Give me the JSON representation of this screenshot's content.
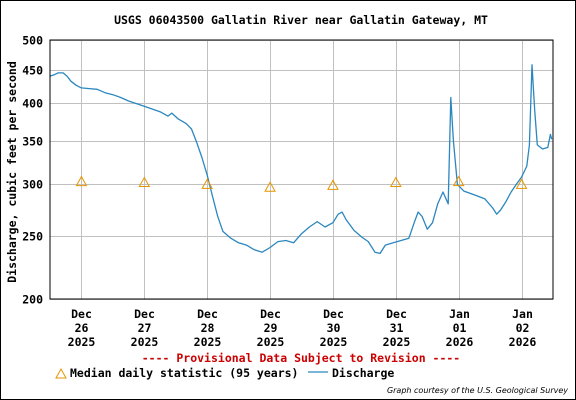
{
  "chart_data": {
    "type": "line",
    "title": "USGS 06043500 Gallatin River near Gallatin Gateway, MT",
    "ylabel": "Discharge, cubic feet per second",
    "y_scale": "log",
    "ylim": [
      200,
      500
    ],
    "yticks": [
      "500",
      "450",
      "400",
      "350",
      "300",
      "250",
      "200"
    ],
    "ytick_values": [
      500,
      450,
      400,
      350,
      300,
      250,
      200
    ],
    "xlim": [
      "2025-12-25T12:00",
      "2026-01-02T12:00"
    ],
    "xticks": [
      {
        "date": "2025-12-26",
        "l1": "Dec",
        "l2": "26",
        "l3": "2025"
      },
      {
        "date": "2025-12-27",
        "l1": "Dec",
        "l2": "27",
        "l3": "2025"
      },
      {
        "date": "2025-12-28",
        "l1": "Dec",
        "l2": "28",
        "l3": "2025"
      },
      {
        "date": "2025-12-29",
        "l1": "Dec",
        "l2": "29",
        "l3": "2025"
      },
      {
        "date": "2025-12-30",
        "l1": "Dec",
        "l2": "30",
        "l3": "2025"
      },
      {
        "date": "2025-12-31",
        "l1": "Dec",
        "l2": "31",
        "l3": "2025"
      },
      {
        "date": "2026-01-01",
        "l1": "Jan",
        "l2": "01",
        "l3": "2026"
      },
      {
        "date": "2026-01-02",
        "l1": "Jan",
        "l2": "02",
        "l3": "2026"
      }
    ],
    "grid": true,
    "provisional_note": "---- Provisional Data Subject to Revision ----",
    "credit": "Graph courtesy of the U.S. Geological Survey",
    "colors": {
      "discharge": "#2b87bf",
      "median": "#e69500",
      "provisional": "#cc0000",
      "grid": "#c0c0c0"
    },
    "series": [
      {
        "name": "Median daily statistic (95 years)",
        "marker": "triangle",
        "points": [
          {
            "x": "2025-12-26T00:00",
            "y": 303
          },
          {
            "x": "2025-12-27T00:00",
            "y": 302
          },
          {
            "x": "2025-12-28T00:00",
            "y": 300
          },
          {
            "x": "2025-12-29T00:00",
            "y": 297
          },
          {
            "x": "2025-12-30T00:00",
            "y": 299
          },
          {
            "x": "2025-12-31T00:00",
            "y": 302
          },
          {
            "x": "2026-01-01T00:00",
            "y": 303
          },
          {
            "x": "2026-01-02T00:00",
            "y": 300
          }
        ]
      },
      {
        "name": "Discharge",
        "points": [
          {
            "x": "2025-12-25T12:00",
            "y": 440
          },
          {
            "x": "2025-12-25T13:30",
            "y": 442
          },
          {
            "x": "2025-12-25T15:00",
            "y": 445
          },
          {
            "x": "2025-12-25T17:00",
            "y": 445
          },
          {
            "x": "2025-12-25T18:30",
            "y": 440
          },
          {
            "x": "2025-12-25T20:00",
            "y": 432
          },
          {
            "x": "2025-12-25T22:00",
            "y": 426
          },
          {
            "x": "2025-12-26T00:00",
            "y": 422
          },
          {
            "x": "2025-12-26T03:00",
            "y": 421
          },
          {
            "x": "2025-12-26T06:00",
            "y": 420
          },
          {
            "x": "2025-12-26T09:00",
            "y": 415
          },
          {
            "x": "2025-12-26T12:00",
            "y": 412
          },
          {
            "x": "2025-12-26T15:00",
            "y": 408
          },
          {
            "x": "2025-12-26T18:00",
            "y": 403
          },
          {
            "x": "2025-12-26T22:00",
            "y": 398
          },
          {
            "x": "2025-12-27T02:00",
            "y": 393
          },
          {
            "x": "2025-12-27T06:00",
            "y": 388
          },
          {
            "x": "2025-12-27T09:00",
            "y": 382
          },
          {
            "x": "2025-12-27T10:30",
            "y": 386
          },
          {
            "x": "2025-12-27T13:00",
            "y": 378
          },
          {
            "x": "2025-12-27T16:00",
            "y": 372
          },
          {
            "x": "2025-12-27T18:00",
            "y": 365
          },
          {
            "x": "2025-12-27T20:00",
            "y": 348
          },
          {
            "x": "2025-12-27T22:00",
            "y": 330
          },
          {
            "x": "2025-12-28T00:00",
            "y": 310
          },
          {
            "x": "2025-12-28T02:00",
            "y": 288
          },
          {
            "x": "2025-12-28T04:00",
            "y": 268
          },
          {
            "x": "2025-12-28T06:00",
            "y": 254
          },
          {
            "x": "2025-12-28T09:00",
            "y": 248
          },
          {
            "x": "2025-12-28T12:00",
            "y": 244
          },
          {
            "x": "2025-12-28T15:00",
            "y": 242
          },
          {
            "x": "2025-12-28T18:00",
            "y": 238
          },
          {
            "x": "2025-12-28T21:00",
            "y": 236
          },
          {
            "x": "2025-12-29T00:00",
            "y": 240
          },
          {
            "x": "2025-12-29T03:00",
            "y": 245
          },
          {
            "x": "2025-12-29T06:00",
            "y": 246
          },
          {
            "x": "2025-12-29T09:00",
            "y": 244
          },
          {
            "x": "2025-12-29T12:00",
            "y": 252
          },
          {
            "x": "2025-12-29T15:00",
            "y": 258
          },
          {
            "x": "2025-12-29T18:00",
            "y": 263
          },
          {
            "x": "2025-12-29T21:00",
            "y": 258
          },
          {
            "x": "2025-12-30T00:00",
            "y": 262
          },
          {
            "x": "2025-12-30T02:00",
            "y": 270
          },
          {
            "x": "2025-12-30T03:30",
            "y": 272
          },
          {
            "x": "2025-12-30T05:00",
            "y": 265
          },
          {
            "x": "2025-12-30T08:00",
            "y": 255
          },
          {
            "x": "2025-12-30T11:00",
            "y": 249
          },
          {
            "x": "2025-12-30T13:30",
            "y": 245
          },
          {
            "x": "2025-12-30T16:00",
            "y": 236
          },
          {
            "x": "2025-12-30T18:00",
            "y": 235
          },
          {
            "x": "2025-12-30T20:00",
            "y": 242
          },
          {
            "x": "2025-12-30T23:00",
            "y": 244
          },
          {
            "x": "2025-12-31T02:00",
            "y": 246
          },
          {
            "x": "2025-12-31T05:00",
            "y": 248
          },
          {
            "x": "2025-12-31T07:00",
            "y": 262
          },
          {
            "x": "2025-12-31T08:30",
            "y": 272
          },
          {
            "x": "2025-12-31T10:00",
            "y": 268
          },
          {
            "x": "2025-12-31T12:00",
            "y": 256
          },
          {
            "x": "2025-12-31T14:00",
            "y": 262
          },
          {
            "x": "2025-12-31T16:00",
            "y": 280
          },
          {
            "x": "2025-12-31T18:00",
            "y": 292
          },
          {
            "x": "2025-12-31T20:00",
            "y": 280
          },
          {
            "x": "2025-12-31T21:00",
            "y": 408
          },
          {
            "x": "2025-12-31T22:00",
            "y": 350
          },
          {
            "x": "2025-12-31T23:30",
            "y": 300
          },
          {
            "x": "2026-01-01T02:00",
            "y": 293
          },
          {
            "x": "2026-01-01T06:00",
            "y": 289
          },
          {
            "x": "2026-01-01T10:00",
            "y": 285
          },
          {
            "x": "2026-01-01T13:00",
            "y": 276
          },
          {
            "x": "2026-01-01T14:30",
            "y": 270
          },
          {
            "x": "2026-01-01T16:00",
            "y": 274
          },
          {
            "x": "2026-01-01T18:00",
            "y": 282
          },
          {
            "x": "2026-01-01T20:00",
            "y": 292
          },
          {
            "x": "2026-01-01T22:00",
            "y": 300
          },
          {
            "x": "2026-01-02T00:00",
            "y": 308
          },
          {
            "x": "2026-01-02T02:00",
            "y": 320
          },
          {
            "x": "2026-01-02T03:00",
            "y": 345
          },
          {
            "x": "2026-01-02T04:00",
            "y": 458
          },
          {
            "x": "2026-01-02T05:00",
            "y": 390
          },
          {
            "x": "2026-01-02T06:00",
            "y": 345
          },
          {
            "x": "2026-01-02T08:00",
            "y": 340
          },
          {
            "x": "2026-01-02T10:00",
            "y": 342
          },
          {
            "x": "2026-01-02T11:00",
            "y": 358
          },
          {
            "x": "2026-01-02T11:30",
            "y": 352
          }
        ]
      }
    ]
  }
}
